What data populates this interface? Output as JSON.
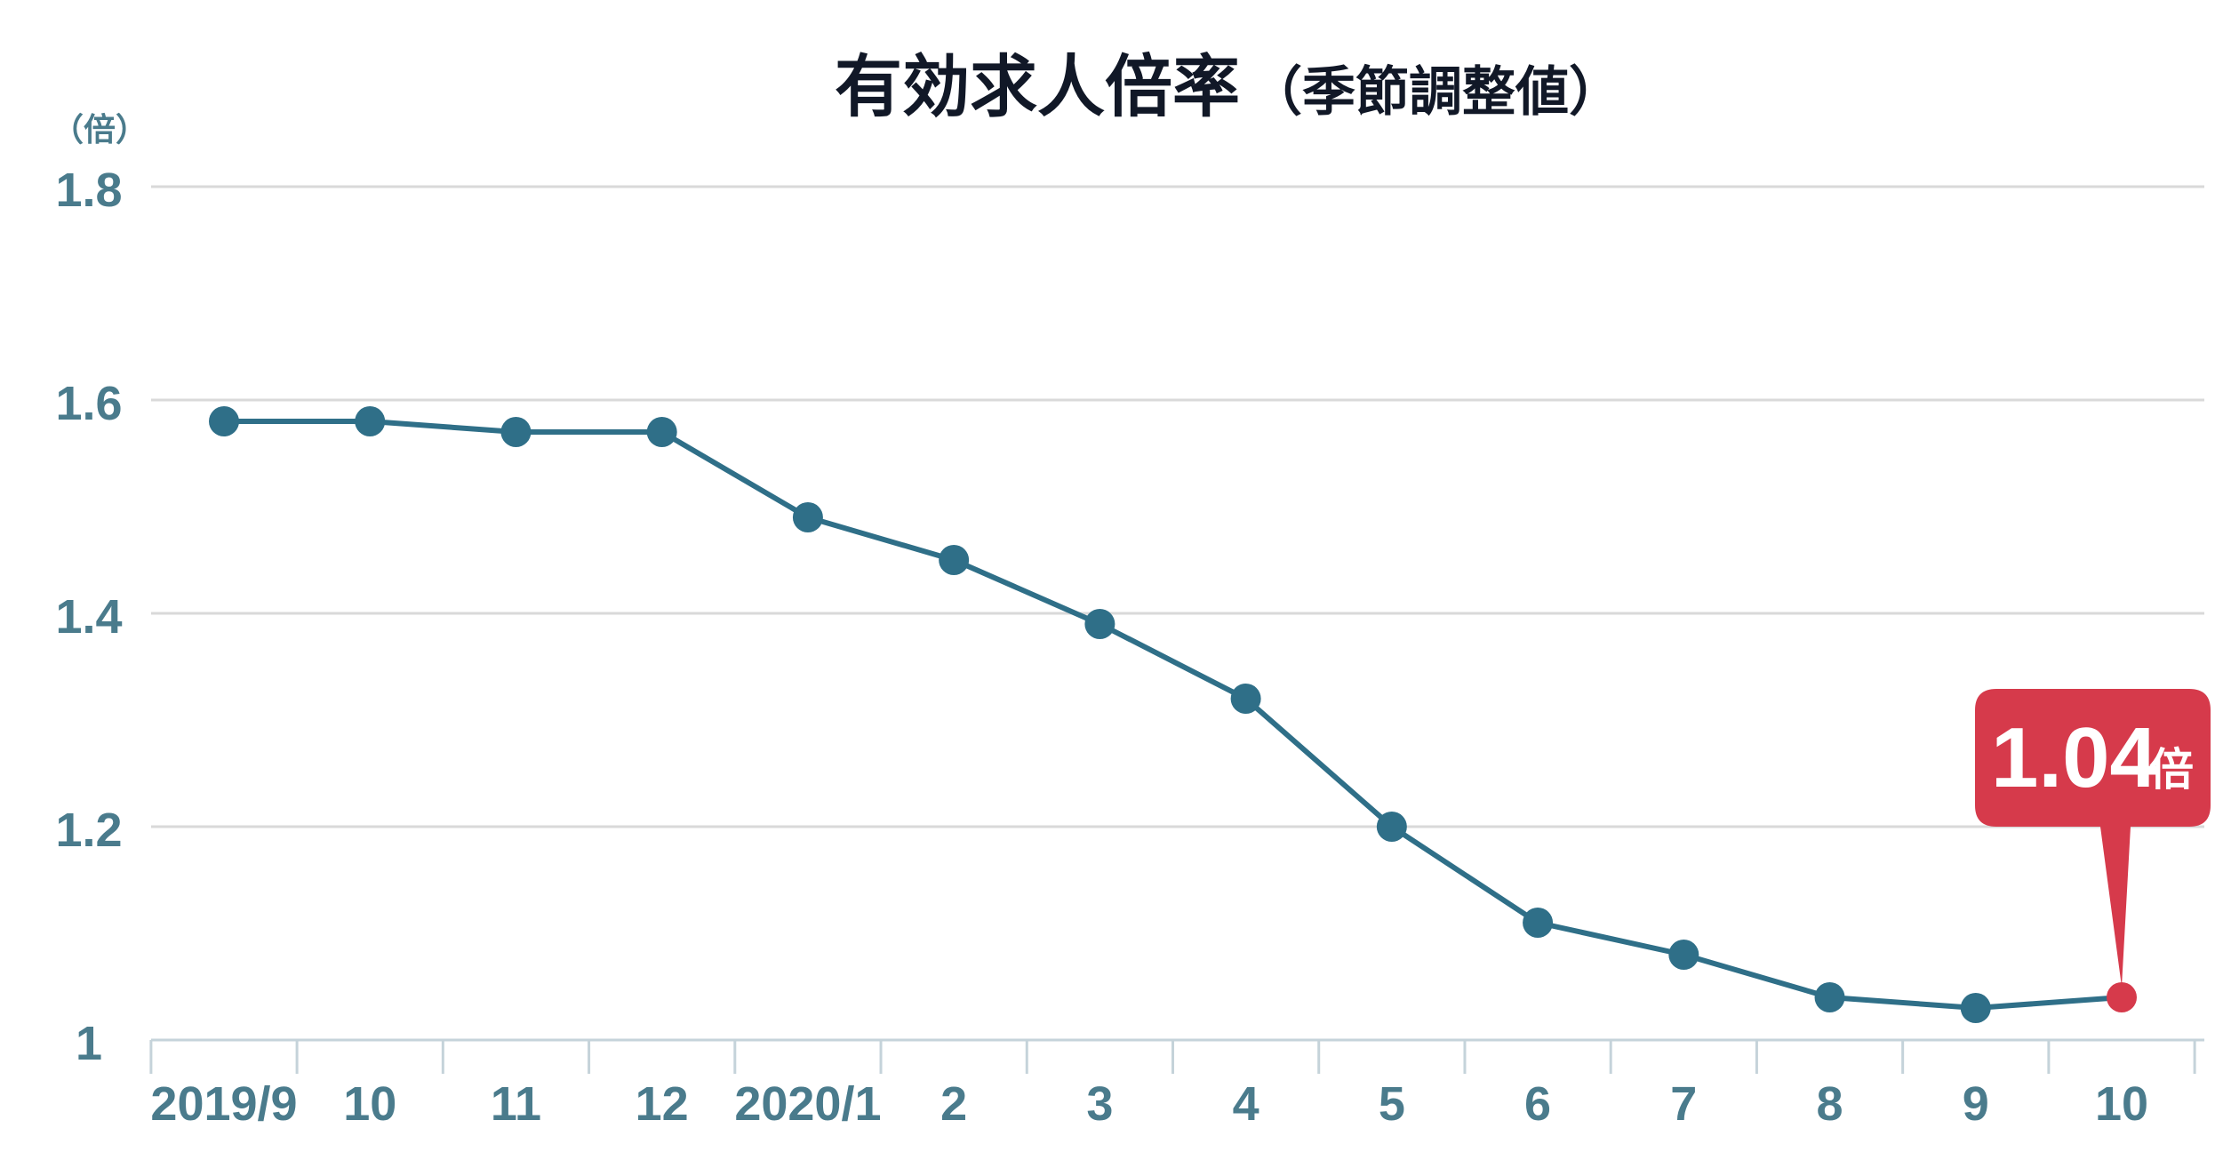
{
  "chart_data": {
    "type": "line",
    "title": "有効求人倍率",
    "subtitle": "（季節調整値）",
    "ylabel": "（倍）",
    "xlabel": "",
    "ylim": [
      1.0,
      1.8
    ],
    "yticks": [
      "1",
      "1.2",
      "1.4",
      "1.6",
      "1.8"
    ],
    "grid": true,
    "categories": [
      "2019/9",
      "10",
      "11",
      "12",
      "2020/1",
      "2",
      "3",
      "4",
      "5",
      "6",
      "7",
      "8",
      "9",
      "10"
    ],
    "values": [
      1.58,
      1.58,
      1.57,
      1.57,
      1.49,
      1.45,
      1.39,
      1.32,
      1.2,
      1.11,
      1.08,
      1.04,
      1.03,
      1.04
    ],
    "highlight": {
      "index": 13,
      "value_label": "1.04",
      "unit_label": "倍"
    },
    "colors": {
      "line": "#2f6f88",
      "point": "#2f6f88",
      "highlight": "#d63a4b",
      "grid": "#d9d9d9",
      "axis": "#c5d3da",
      "tick_text": "#4a7b8c",
      "title": "#111827"
    }
  }
}
